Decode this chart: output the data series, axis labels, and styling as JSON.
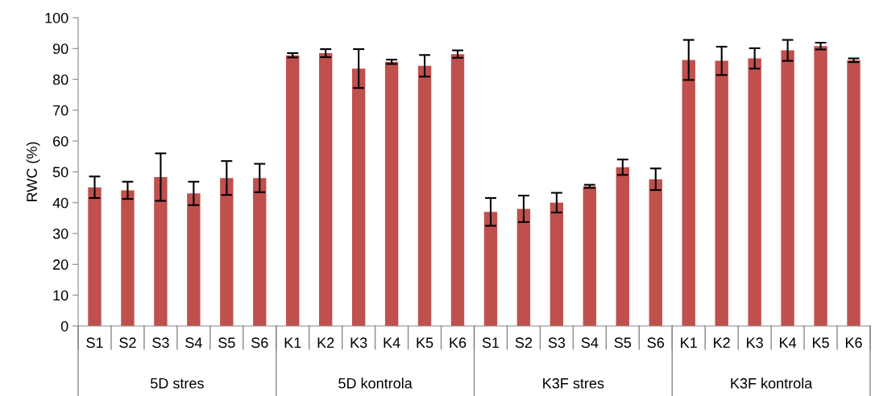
{
  "chart_data": {
    "type": "bar",
    "ylabel": "RWC (%)",
    "categories": [
      "S1",
      "S2",
      "S3",
      "S4",
      "S5",
      "S6",
      "K1",
      "K2",
      "K3",
      "K4",
      "K5",
      "K6",
      "S1",
      "S2",
      "S3",
      "S4",
      "S5",
      "S6",
      "K1",
      "K2",
      "K3",
      "K4",
      "K5",
      "K6"
    ],
    "values": [
      45,
      44,
      48.3,
      43,
      48,
      48,
      87.8,
      88.5,
      83.5,
      85.7,
      84.4,
      88.2,
      37,
      38,
      40,
      45.3,
      51.5,
      47.6,
      86.3,
      86,
      86.8,
      89.4,
      90.8,
      86.2
    ],
    "errors": [
      3.5,
      2.8,
      7.7,
      3.8,
      5.5,
      4.6,
      0.7,
      1.3,
      6.3,
      0.7,
      3.5,
      1.2,
      4.5,
      4.3,
      3.2,
      0.5,
      2.5,
      3.5,
      6.5,
      4.6,
      3.3,
      3.4,
      1.1,
      0.6
    ],
    "color": "#c0504d",
    "ylim": [
      0,
      100
    ],
    "yticks": [
      0,
      10,
      20,
      30,
      40,
      50,
      60,
      70,
      80,
      90,
      100
    ],
    "grid": false,
    "legend": false,
    "annotations": [
      "5D stres",
      "5D kontrola",
      "K3F stres",
      "K3F kontrola"
    ]
  }
}
